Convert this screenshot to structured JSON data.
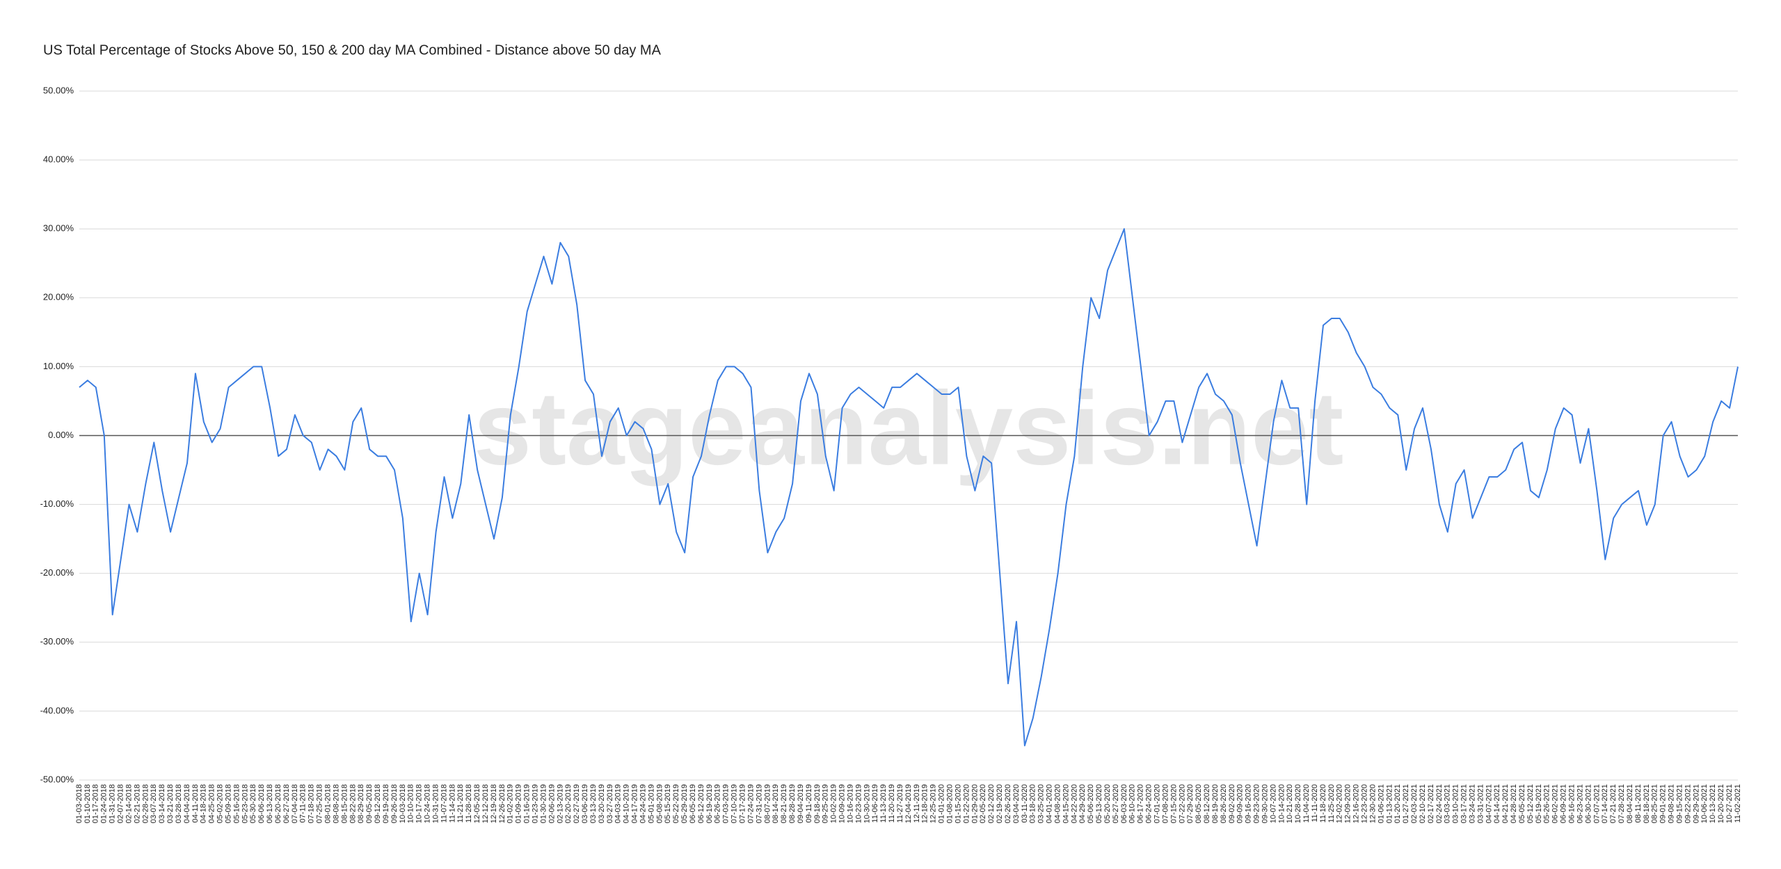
{
  "chart_data": {
    "type": "line",
    "title": "US Total Percentage of Stocks Above 50, 150 & 200 day MA Combined - Distance above 50 day MA",
    "watermark": "stageanalysis.net",
    "categories": [
      "01-03-2018",
      "01-10-2018",
      "01-17-2018",
      "01-24-2018",
      "01-31-2018",
      "02-07-2018",
      "02-14-2018",
      "02-21-2018",
      "02-28-2018",
      "03-07-2018",
      "03-14-2018",
      "03-21-2018",
      "03-28-2018",
      "04-04-2018",
      "04-11-2018",
      "04-18-2018",
      "04-25-2018",
      "05-02-2018",
      "05-09-2018",
      "05-16-2018",
      "05-23-2018",
      "05-30-2018",
      "06-06-2018",
      "06-13-2018",
      "06-20-2018",
      "06-27-2018",
      "07-04-2018",
      "07-11-2018",
      "07-18-2018",
      "07-25-2018",
      "08-01-2018",
      "08-08-2018",
      "08-15-2018",
      "08-22-2018",
      "08-29-2018",
      "09-05-2018",
      "09-12-2018",
      "09-19-2018",
      "09-26-2018",
      "10-03-2018",
      "10-10-2018",
      "10-17-2018",
      "10-24-2018",
      "10-31-2018",
      "11-07-2018",
      "11-14-2018",
      "11-21-2018",
      "11-28-2018",
      "12-05-2018",
      "12-12-2018",
      "12-19-2018",
      "12-26-2018",
      "01-02-2019",
      "01-09-2019",
      "01-16-2019",
      "01-23-2019",
      "01-30-2019",
      "02-06-2019",
      "02-13-2019",
      "02-20-2019",
      "02-27-2019",
      "03-06-2019",
      "03-13-2019",
      "03-20-2019",
      "03-27-2019",
      "04-03-2019",
      "04-10-2019",
      "04-17-2019",
      "04-24-2019",
      "05-01-2019",
      "05-08-2019",
      "05-15-2019",
      "05-22-2019",
      "05-29-2019",
      "06-05-2019",
      "06-12-2019",
      "06-19-2019",
      "06-26-2019",
      "07-03-2019",
      "07-10-2019",
      "07-17-2019",
      "07-24-2019",
      "07-31-2019",
      "08-07-2019",
      "08-14-2019",
      "08-21-2019",
      "08-28-2019",
      "09-04-2019",
      "09-11-2019",
      "09-18-2019",
      "09-25-2019",
      "10-02-2019",
      "10-09-2019",
      "10-16-2019",
      "10-23-2019",
      "10-30-2019",
      "11-06-2019",
      "11-13-2019",
      "11-20-2019",
      "11-27-2019",
      "12-04-2019",
      "12-11-2019",
      "12-18-2019",
      "12-25-2019",
      "01-01-2020",
      "01-08-2020",
      "01-15-2020",
      "01-22-2020",
      "01-29-2020",
      "02-05-2020",
      "02-12-2020",
      "02-19-2020",
      "02-26-2020",
      "03-04-2020",
      "03-11-2020",
      "03-18-2020",
      "03-25-2020",
      "04-01-2020",
      "04-08-2020",
      "04-15-2020",
      "04-22-2020",
      "04-29-2020",
      "05-06-2020",
      "05-13-2020",
      "05-20-2020",
      "05-27-2020",
      "06-03-2020",
      "06-10-2020",
      "06-17-2020",
      "06-24-2020",
      "07-01-2020",
      "07-08-2020",
      "07-15-2020",
      "07-22-2020",
      "07-29-2020",
      "08-05-2020",
      "08-12-2020",
      "08-19-2020",
      "08-26-2020",
      "09-02-2020",
      "09-09-2020",
      "09-16-2020",
      "09-23-2020",
      "09-30-2020",
      "10-07-2020",
      "10-14-2020",
      "10-21-2020",
      "10-28-2020",
      "11-04-2020",
      "11-11-2020",
      "11-18-2020",
      "11-25-2020",
      "12-02-2020",
      "12-09-2020",
      "12-16-2020",
      "12-23-2020",
      "12-30-2020",
      "01-06-2021",
      "01-13-2021",
      "01-20-2021",
      "01-27-2021",
      "02-03-2021",
      "02-10-2021",
      "02-17-2021",
      "02-24-2021",
      "03-03-2021",
      "03-10-2021",
      "03-17-2021",
      "03-24-2021",
      "03-31-2021",
      "04-07-2021",
      "04-14-2021",
      "04-21-2021",
      "04-28-2021",
      "05-05-2021",
      "05-12-2021",
      "05-19-2021",
      "05-26-2021",
      "06-02-2021",
      "06-09-2021",
      "06-16-2021",
      "06-23-2021",
      "06-30-2021",
      "07-07-2021",
      "07-14-2021",
      "07-21-2021",
      "07-28-2021",
      "08-04-2021",
      "08-11-2021",
      "08-18-2021",
      "08-25-2021",
      "09-01-2021",
      "09-08-2021",
      "09-15-2021",
      "09-22-2021",
      "09-29-2021",
      "10-06-2021",
      "10-13-2021",
      "10-20-2021",
      "10-27-2021",
      "11-02-2021"
    ],
    "series": [
      {
        "name": "Distance above 50 day MA",
        "color": "#3b7de0",
        "values": [
          7,
          8,
          7,
          0,
          -26,
          -18,
          -10,
          -14,
          -7,
          -1,
          -8,
          -14,
          -9,
          -4,
          9,
          2,
          -1,
          1,
          7,
          8,
          9,
          10,
          10,
          4,
          -3,
          -2,
          3,
          0,
          -1,
          -5,
          -2,
          -3,
          -5,
          2,
          4,
          -2,
          -3,
          -3,
          -5,
          -12,
          -27,
          -20,
          -26,
          -14,
          -6,
          -12,
          -7,
          3,
          -5,
          -10,
          -15,
          -9,
          3,
          10,
          18,
          22,
          26,
          22,
          28,
          26,
          19,
          8,
          6,
          -3,
          2,
          4,
          0,
          2,
          1,
          -2,
          -10,
          -7,
          -14,
          -17,
          -6,
          -3,
          3,
          8,
          10,
          10,
          9,
          7,
          -8,
          -17,
          -14,
          -12,
          -7,
          5,
          9,
          6,
          -3,
          -8,
          4,
          6,
          7,
          6,
          5,
          4,
          7,
          7,
          8,
          9,
          8,
          7,
          6,
          6,
          7,
          -3,
          -8,
          -3,
          -4,
          -20,
          -36,
          -27,
          -45,
          -41,
          -35,
          -28,
          -20,
          -10,
          -3,
          10,
          20,
          17,
          24,
          27,
          30,
          20,
          10,
          0,
          2,
          5,
          5,
          -1,
          3,
          7,
          9,
          6,
          5,
          3,
          -4,
          -10,
          -16,
          -7,
          2,
          8,
          4,
          4,
          -10,
          5,
          16,
          17,
          17,
          15,
          12,
          10,
          7,
          6,
          4,
          3,
          -5,
          1,
          4,
          -2,
          -10,
          -14,
          -7,
          -5,
          -12,
          -9,
          -6,
          -6,
          -5,
          -2,
          -1,
          -8,
          -9,
          -5,
          1,
          4,
          3,
          -4,
          1,
          -8,
          -18,
          -12,
          -10,
          -9,
          -8,
          -13,
          -10,
          0,
          2,
          -3,
          -6,
          -5,
          -3,
          2,
          5,
          4,
          10
        ]
      }
    ],
    "ylim": [
      -50,
      50
    ],
    "yticks": [
      {
        "value": -50,
        "label": "-50.00%"
      },
      {
        "value": -40,
        "label": "-40.00%"
      },
      {
        "value": -30,
        "label": "-30.00%"
      },
      {
        "value": -20,
        "label": "-20.00%"
      },
      {
        "value": -10,
        "label": "-10.00%"
      },
      {
        "value": 0,
        "label": "0.00%"
      },
      {
        "value": 10,
        "label": "10.00%"
      },
      {
        "value": 20,
        "label": "20.00%"
      },
      {
        "value": 30,
        "label": "30.00%"
      },
      {
        "value": 40,
        "label": "40.00%"
      },
      {
        "value": 50,
        "label": "50.00%"
      }
    ],
    "grid": true
  }
}
